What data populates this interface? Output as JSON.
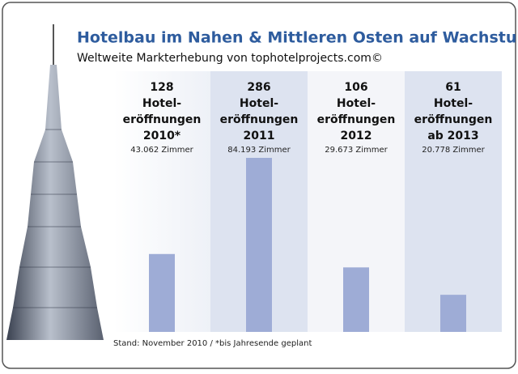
{
  "chart_data": {
    "type": "bar",
    "title": "Hotelbau im Nahen & Mittleren Osten auf Wachstumskurs",
    "subtitle": "Weltweite Markterhebung von tophotelprojects.com©",
    "categories": [
      "2010*",
      "2011",
      "2012",
      "ab 2013"
    ],
    "values": [
      128,
      286,
      106,
      61
    ],
    "descriptions": [
      [
        "Hotel-",
        "eröffnungen"
      ],
      [
        "Hotel-",
        "eröffnungen"
      ],
      [
        "Hotel-",
        "eröffnungen"
      ],
      [
        "Hotel-",
        "eröffnungen"
      ]
    ],
    "room_labels": [
      "43.062 Zimmer",
      "84.193 Zimmer",
      "29.673 Zimmer",
      "20.778 Zimmer"
    ],
    "color": "#9eacd6",
    "footnote": "Stand: November 2010 / *bis Jahresende geplant"
  }
}
